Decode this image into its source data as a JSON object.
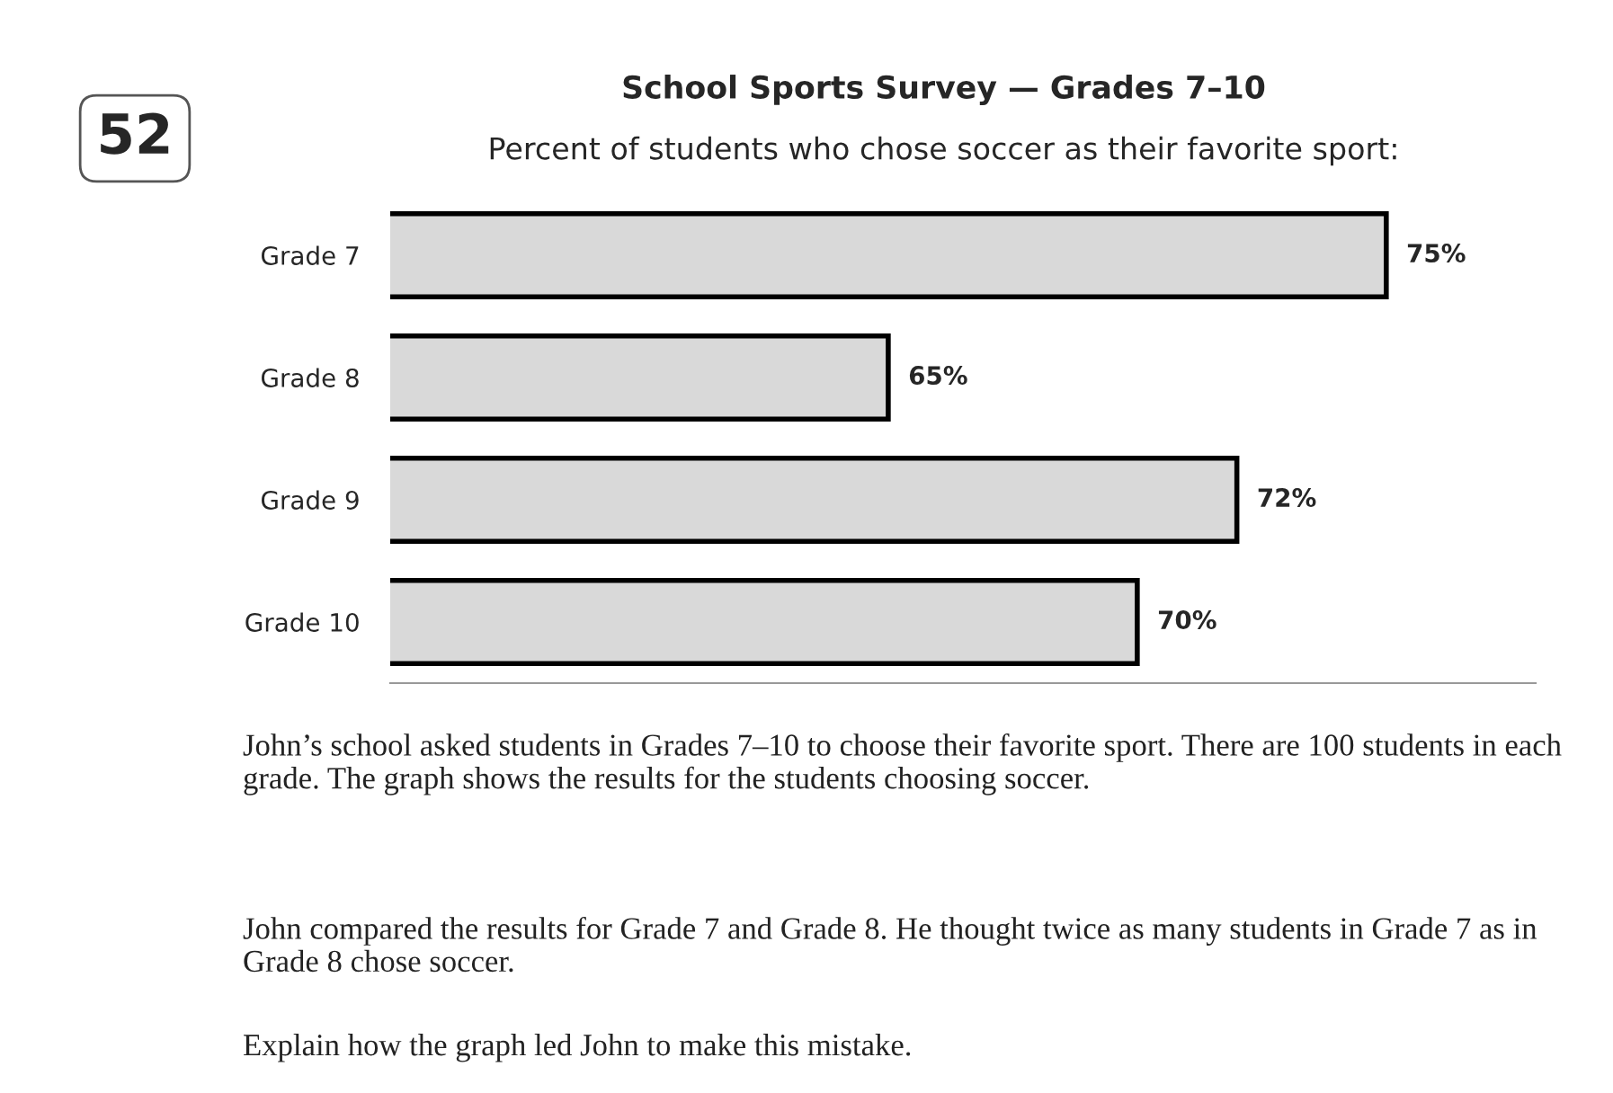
{
  "chart_data": {
    "type": "bar",
    "orientation": "horizontal",
    "title": "School Sports Survey — Grades 7–10",
    "subtitle": "Percent of students who chose soccer as their favorite sport:",
    "categories": [
      "Grade 7",
      "Grade 8",
      "Grade 9",
      "Grade 10"
    ],
    "values": [
      75,
      65,
      72,
      70
    ],
    "value_labels": [
      "75%",
      "65%",
      "72%",
      "70%"
    ],
    "color": "#d9d9d9",
    "xlim": [
      55,
      78
    ],
    "tick_labels": "y",
    "grid": false,
    "legend": false,
    "annotations": [
      "52",
      "John’s school asked students in Grades 7–10 to choose their favorite sport. There are 100 students in each grade. The graph shows the results for the students choosing soccer.",
      "John compared the results for Grade 7 and Grade 8. He thought twice as many students in Grade 7 as in Grade 8 chose soccer.",
      "Explain how the graph led John to make this mistake."
    ]
  }
}
